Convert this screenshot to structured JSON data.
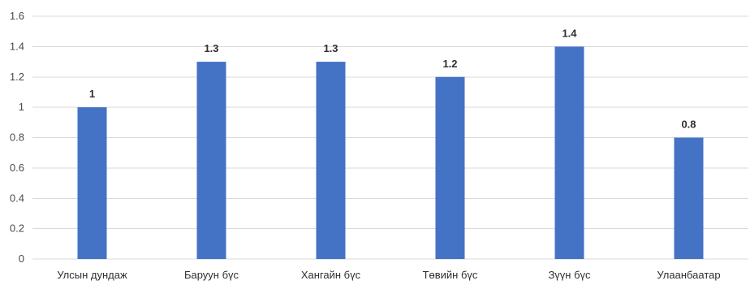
{
  "chart_data": {
    "type": "bar",
    "title": "",
    "xlabel": "",
    "ylabel": "",
    "categories": [
      "Улсын дундаж",
      "Баруун бүс",
      "Хангайн бүс",
      "Төвийн бүс",
      "Зүүн бүс",
      "Улаанбаатар"
    ],
    "series": [
      {
        "values": [
          1,
          1.3,
          1.3,
          1.2,
          1.4,
          0.8
        ],
        "color": "#4472c4"
      }
    ],
    "data_labels": [
      "1",
      "1.3",
      "1.3",
      "1.2",
      "1.4",
      "0.8"
    ],
    "yticks": [
      "0",
      "0.2",
      "0.4",
      "0.6",
      "0.8",
      "1",
      "1.2",
      "1.4",
      "1.6"
    ],
    "ylim": [
      0,
      1.6
    ],
    "grid": true,
    "legend": "none"
  }
}
